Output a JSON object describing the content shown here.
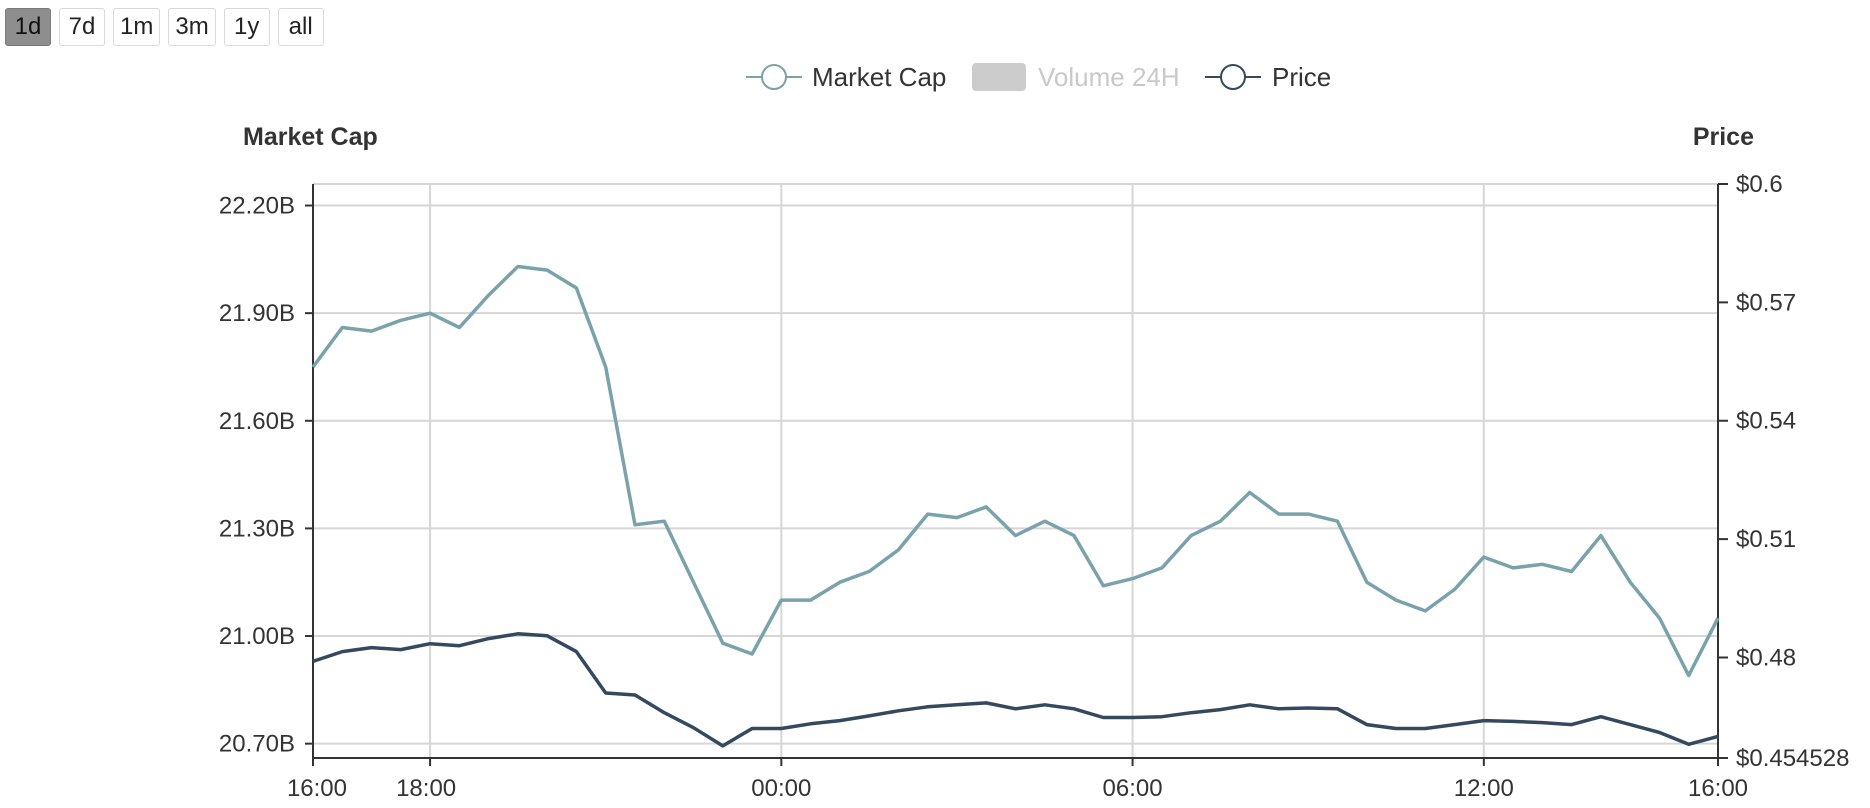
{
  "range_buttons": [
    "1d",
    "7d",
    "1m",
    "3m",
    "1y",
    "all"
  ],
  "active_range": "1d",
  "colors": {
    "market_cap": "#7aa2aa",
    "price": "#34495e",
    "volume_swatch": "#cccccc",
    "volume_text": "#c9c9c9",
    "grid": "#d6d6d6",
    "axis": "#333333"
  },
  "chart_data": {
    "type": "line",
    "legend": [
      {
        "name": "Market Cap",
        "marker": "line-circle",
        "enabled": true
      },
      {
        "name": "Volume 24H",
        "marker": "box",
        "enabled": false
      },
      {
        "name": "Price",
        "marker": "line-circle",
        "enabled": true
      }
    ],
    "left_axis": {
      "title": "Market Cap",
      "ticks": [
        "22.20B",
        "21.90B",
        "21.60B",
        "21.30B",
        "21.00B",
        "20.70B"
      ],
      "tick_values": [
        22.2,
        21.9,
        21.6,
        21.3,
        21.0,
        20.7
      ],
      "range": [
        20.66,
        22.26
      ],
      "unit": "B"
    },
    "right_axis": {
      "title": "Price",
      "ticks": [
        "$0.6",
        "$0.57",
        "$0.54",
        "$0.51",
        "$0.48",
        "$0.454528"
      ],
      "tick_values": [
        0.6,
        0.57,
        0.54,
        0.51,
        0.48,
        0.454528
      ],
      "range": [
        0.454528,
        0.6
      ]
    },
    "x_axis": {
      "ticks": [
        "16:00",
        "18:00",
        "00:00",
        "06:00",
        "12:00",
        "16:00"
      ],
      "tick_hours": [
        0,
        2,
        8,
        14,
        20,
        24
      ],
      "range_hours": [
        0,
        24
      ],
      "grid": true
    },
    "x_hours": [
      0,
      0.5,
      1,
      1.5,
      2,
      2.5,
      3,
      3.5,
      4,
      4.5,
      5,
      5.5,
      6,
      6.5,
      7,
      7.5,
      8,
      8.5,
      9,
      9.5,
      10,
      10.5,
      11,
      11.5,
      12,
      12.5,
      13,
      13.5,
      14,
      14.5,
      15,
      15.5,
      16,
      16.5,
      17,
      17.5,
      18,
      18.5,
      19,
      19.5,
      20,
      20.5,
      21,
      21.5,
      22,
      22.5,
      23,
      23.5,
      24
    ],
    "series": [
      {
        "name": "Market Cap",
        "axis": "left",
        "unit": "B",
        "values": [
          21.75,
          21.86,
          21.85,
          21.88,
          21.9,
          21.86,
          21.95,
          22.03,
          22.02,
          21.97,
          21.75,
          21.31,
          21.32,
          21.15,
          20.98,
          20.95,
          21.1,
          21.1,
          21.15,
          21.18,
          21.24,
          21.34,
          21.33,
          21.36,
          21.28,
          21.32,
          21.28,
          21.14,
          21.16,
          21.19,
          21.28,
          21.32,
          21.4,
          21.34,
          21.34,
          21.32,
          21.15,
          21.1,
          21.07,
          21.13,
          21.22,
          21.19,
          21.2,
          21.18,
          21.28,
          21.15,
          21.05,
          20.89,
          21.05
        ]
      },
      {
        "name": "Price",
        "axis": "right",
        "values": [
          0.479,
          0.4815,
          0.4825,
          0.482,
          0.4835,
          0.483,
          0.4848,
          0.486,
          0.4855,
          0.4815,
          0.471,
          0.4705,
          0.466,
          0.4622,
          0.4576,
          0.462,
          0.462,
          0.4632,
          0.464,
          0.4652,
          0.4665,
          0.4675,
          0.468,
          0.4685,
          0.467,
          0.468,
          0.467,
          0.4648,
          0.4648,
          0.465,
          0.466,
          0.4668,
          0.468,
          0.467,
          0.4672,
          0.467,
          0.463,
          0.462,
          0.462,
          0.463,
          0.464,
          0.4638,
          0.4635,
          0.463,
          0.465,
          0.463,
          0.461,
          0.458,
          0.46
        ]
      }
    ]
  }
}
